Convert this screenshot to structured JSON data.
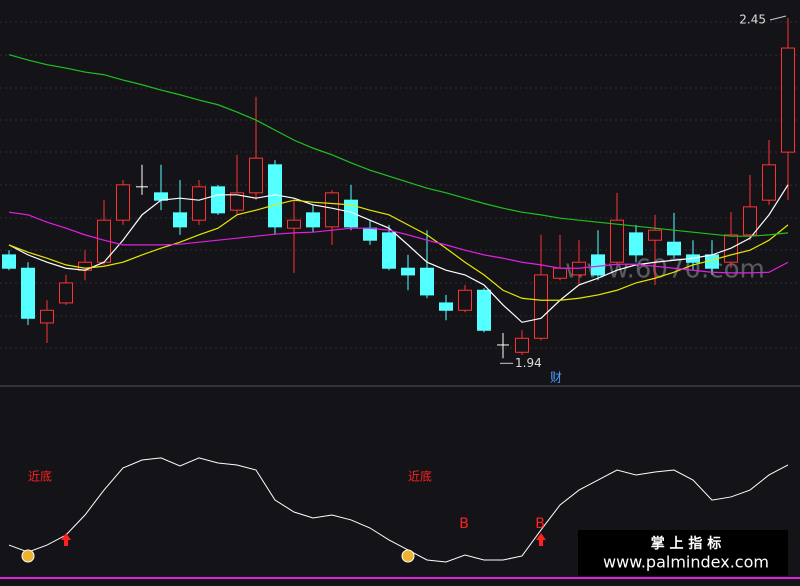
{
  "chart_data": [
    {
      "type": "candlestick",
      "open": [
        2.095,
        2.075,
        1.993,
        2.023,
        2.072,
        2.084,
        2.147,
        2.197,
        2.188,
        2.158,
        2.147,
        2.197,
        2.162,
        2.188,
        2.23,
        2.135,
        2.158,
        2.137,
        2.177,
        2.135,
        2.128,
        2.075,
        2.075,
        2.023,
        2.012,
        2.042,
        1.96,
        1.949,
        1.97,
        2.06,
        2.065,
        2.095,
        2.084,
        2.128,
        2.117,
        2.114,
        2.095,
        2.095,
        2.084,
        2.125,
        2.177,
        2.249
      ],
      "high": [
        2.102,
        2.084,
        2.027,
        2.065,
        2.102,
        2.177,
        2.207,
        2.23,
        2.23,
        2.207,
        2.207,
        2.2,
        2.245,
        2.332,
        2.237,
        2.177,
        2.17,
        2.192,
        2.2,
        2.147,
        2.14,
        2.095,
        2.132,
        2.035,
        2.05,
        2.045,
        1.978,
        1.982,
        2.125,
        2.125,
        2.117,
        2.132,
        2.188,
        2.14,
        2.155,
        2.158,
        2.117,
        2.117,
        2.159,
        2.215,
        2.267,
        2.45
      ],
      "low": [
        2.072,
        1.99,
        1.963,
        2.02,
        2.057,
        2.08,
        2.14,
        2.185,
        2.162,
        2.125,
        2.14,
        2.155,
        2.155,
        2.177,
        2.125,
        2.068,
        2.129,
        2.11,
        2.132,
        2.11,
        2.072,
        2.042,
        2.03,
        1.997,
        2.009,
        1.979,
        1.94,
        1.945,
        1.967,
        2.057,
        2.05,
        2.057,
        2.08,
        2.084,
        2.05,
        2.09,
        2.072,
        2.065,
        2.075,
        2.117,
        2.17,
        2.177
      ],
      "close": [
        2.075,
        2.0,
        2.012,
        2.053,
        2.084,
        2.147,
        2.2,
        2.197,
        2.177,
        2.137,
        2.197,
        2.158,
        2.188,
        2.24,
        2.137,
        2.147,
        2.137,
        2.188,
        2.137,
        2.117,
        2.075,
        2.065,
        2.035,
        2.012,
        2.042,
        1.982,
        1.96,
        1.97,
        2.065,
        2.075,
        2.084,
        2.065,
        2.147,
        2.095,
        2.132,
        2.095,
        2.084,
        2.075,
        2.125,
        2.167,
        2.23,
        2.405
      ],
      "up_color": "#ff3232",
      "down_color": "#54ffff",
      "flat_color": "#ffffff",
      "series": [
        {
          "color": "#ffffff",
          "values": [
            2.11,
            2.095,
            2.084,
            2.075,
            2.072,
            2.084,
            2.117,
            2.155,
            2.177,
            2.18,
            2.177,
            2.185,
            2.185,
            2.18,
            2.185,
            2.18,
            2.17,
            2.165,
            2.159,
            2.147,
            2.135,
            2.11,
            2.084,
            2.072,
            2.065,
            2.05,
            2.02,
            1.994,
            2.0,
            2.027,
            2.05,
            2.06,
            2.072,
            2.08,
            2.084,
            2.087,
            2.09,
            2.095,
            2.105,
            2.12,
            2.155,
            2.2
          ]
        },
        {
          "color": "#e6e600",
          "values": [
            2.11,
            2.099,
            2.09,
            2.08,
            2.075,
            2.078,
            2.084,
            2.095,
            2.105,
            2.114,
            2.125,
            2.135,
            2.155,
            2.162,
            2.17,
            2.177,
            2.174,
            2.172,
            2.17,
            2.162,
            2.155,
            2.14,
            2.125,
            2.105,
            2.084,
            2.065,
            2.042,
            2.03,
            2.027,
            2.027,
            2.03,
            2.035,
            2.042,
            2.053,
            2.06,
            2.069,
            2.08,
            2.087,
            2.095,
            2.102,
            2.117,
            2.14
          ]
        },
        {
          "color": "#e020e0",
          "values": [
            2.159,
            2.155,
            2.144,
            2.135,
            2.125,
            2.117,
            2.11,
            2.11,
            2.11,
            2.111,
            2.114,
            2.117,
            2.12,
            2.123,
            2.126,
            2.128,
            2.129,
            2.132,
            2.135,
            2.135,
            2.132,
            2.125,
            2.117,
            2.11,
            2.102,
            2.095,
            2.09,
            2.084,
            2.08,
            2.075,
            2.075,
            2.078,
            2.081,
            2.081,
            2.078,
            2.075,
            2.072,
            2.069,
            2.068,
            2.068,
            2.069,
            2.084
          ]
        },
        {
          "color": "#20c020",
          "values": [
            2.395,
            2.387,
            2.38,
            2.375,
            2.369,
            2.365,
            2.357,
            2.35,
            2.342,
            2.335,
            2.327,
            2.32,
            2.309,
            2.297,
            2.282,
            2.267,
            2.255,
            2.245,
            2.233,
            2.222,
            2.213,
            2.204,
            2.195,
            2.188,
            2.18,
            2.172,
            2.165,
            2.159,
            2.155,
            2.15,
            2.147,
            2.144,
            2.141,
            2.138,
            2.135,
            2.132,
            2.129,
            2.126,
            2.123,
            2.123,
            2.125,
            2.128
          ]
        }
      ],
      "ylim": [
        1.9,
        2.477
      ],
      "marker_text": "财",
      "watermark": "www.6070.com"
    },
    {
      "type": "line",
      "color": "#ffffff",
      "values": [
        19.2,
        13.8,
        19.2,
        26.9,
        42.3,
        61.5,
        78.5,
        84.6,
        86.2,
        80,
        86.2,
        82.3,
        80.8,
        76.9,
        53.8,
        44.6,
        40,
        42.3,
        38.5,
        32.3,
        23.1,
        15.4,
        7.7,
        6.2,
        11.5,
        7.7,
        7.7,
        10.8,
        30.8,
        50,
        61.5,
        69.2,
        76.9,
        73.1,
        75.4,
        76.9,
        69.2,
        53.8,
        56.2,
        61.5,
        73.1,
        80.8
      ],
      "ylim": [
        0,
        100
      ],
      "annotations": [
        "近底",
        "近底",
        "B",
        "B"
      ]
    }
  ],
  "footer": {
    "title": "掌 上 指 标",
    "url": "www.palmindex.com"
  }
}
